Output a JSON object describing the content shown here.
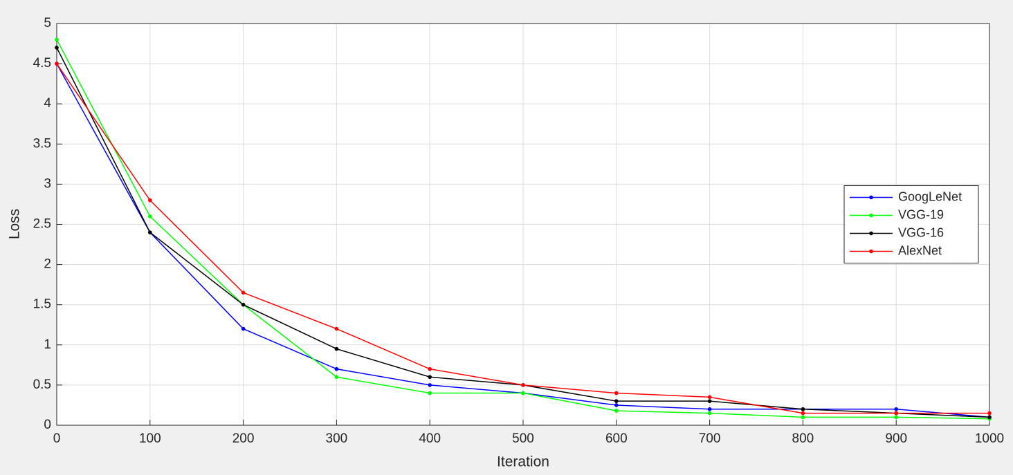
{
  "chart_data": {
    "type": "line",
    "xlabel": "Iteration",
    "ylabel": "Loss",
    "x": [
      0,
      100,
      200,
      300,
      400,
      500,
      600,
      700,
      800,
      900,
      1000
    ],
    "series": [
      {
        "name": "GoogLeNet",
        "color": "#0000ff",
        "values": [
          4.5,
          2.4,
          1.2,
          0.7,
          0.5,
          0.4,
          0.25,
          0.2,
          0.2,
          0.2,
          0.1
        ]
      },
      {
        "name": "VGG-19",
        "color": "#00ff00",
        "values": [
          4.8,
          2.6,
          1.5,
          0.6,
          0.4,
          0.4,
          0.18,
          0.15,
          0.1,
          0.1,
          0.08
        ]
      },
      {
        "name": "VGG-16",
        "color": "#000000",
        "values": [
          4.7,
          2.4,
          1.5,
          0.95,
          0.6,
          0.5,
          0.3,
          0.3,
          0.2,
          0.15,
          0.1
        ]
      },
      {
        "name": "AlexNet",
        "color": "#ff0000",
        "values": [
          4.5,
          2.8,
          1.65,
          1.2,
          0.7,
          0.5,
          0.4,
          0.35,
          0.15,
          0.15,
          0.15
        ]
      }
    ],
    "xlim": [
      0,
      1000
    ],
    "xticks": [
      0,
      100,
      200,
      300,
      400,
      500,
      600,
      700,
      800,
      900,
      1000
    ],
    "ylim": [
      0,
      5
    ],
    "yticks": [
      0,
      0.5,
      1,
      1.5,
      2,
      2.5,
      3,
      3.5,
      4,
      4.5,
      5
    ],
    "grid": true,
    "legend": "east"
  }
}
